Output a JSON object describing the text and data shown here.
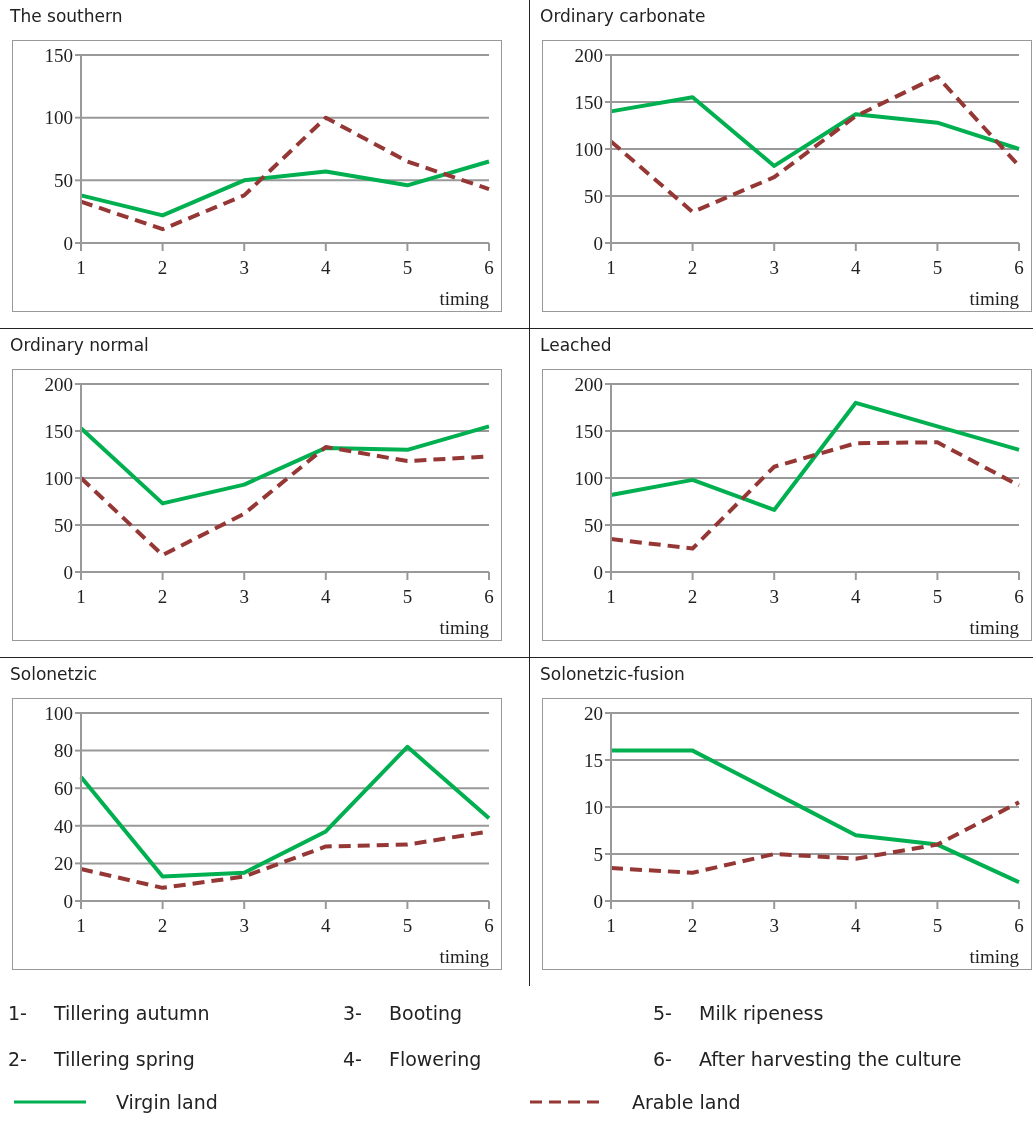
{
  "chart_data": [
    {
      "type": "line",
      "title": "The southern",
      "xlabel": "timing",
      "categories": [
        "1",
        "2",
        "3",
        "4",
        "5",
        "6"
      ],
      "ylim": [
        0,
        150
      ],
      "yticks": [
        0,
        50,
        100,
        150
      ],
      "grid": "y",
      "series": [
        {
          "color": "#00b050",
          "line_style": "solid",
          "values": [
            38,
            22,
            50,
            57,
            46,
            65
          ]
        },
        {
          "color": "#953735",
          "line_style": "dashed",
          "values": [
            33,
            11,
            38,
            100,
            65,
            43
          ]
        }
      ]
    },
    {
      "type": "line",
      "title": "Ordinary carbonate",
      "xlabel": "timing",
      "categories": [
        "1",
        "2",
        "3",
        "4",
        "5",
        "6"
      ],
      "ylim": [
        0,
        200
      ],
      "yticks": [
        0,
        50,
        100,
        150,
        200
      ],
      "grid": "y",
      "series": [
        {
          "color": "#00b050",
          "line_style": "solid",
          "values": [
            140,
            155,
            82,
            137,
            128,
            100
          ]
        },
        {
          "color": "#953735",
          "line_style": "dashed",
          "values": [
            108,
            33,
            70,
            135,
            177,
            82
          ]
        }
      ]
    },
    {
      "type": "line",
      "title": "Ordinary normal",
      "xlabel": "timing",
      "categories": [
        "1",
        "2",
        "3",
        "4",
        "5",
        "6"
      ],
      "ylim": [
        0,
        200
      ],
      "yticks": [
        0,
        50,
        100,
        150,
        200
      ],
      "grid": "y",
      "series": [
        {
          "color": "#00b050",
          "line_style": "solid",
          "values": [
            153,
            73,
            93,
            132,
            130,
            155
          ]
        },
        {
          "color": "#953735",
          "line_style": "dashed",
          "values": [
            100,
            18,
            62,
            133,
            118,
            123
          ]
        }
      ]
    },
    {
      "type": "line",
      "title": "Leached",
      "xlabel": "timing",
      "categories": [
        "1",
        "2",
        "3",
        "4",
        "5",
        "6"
      ],
      "ylim": [
        0,
        200
      ],
      "yticks": [
        0,
        50,
        100,
        150,
        200
      ],
      "grid": "y",
      "series": [
        {
          "color": "#00b050",
          "line_style": "solid",
          "values": [
            82,
            98,
            66,
            180,
            155,
            130
          ]
        },
        {
          "color": "#953735",
          "line_style": "dashed",
          "values": [
            35,
            25,
            112,
            137,
            138,
            92
          ]
        }
      ]
    },
    {
      "type": "line",
      "title": "Solonetzic",
      "xlabel": "timing",
      "categories": [
        "1",
        "2",
        "3",
        "4",
        "5",
        "6"
      ],
      "ylim": [
        0,
        100
      ],
      "yticks": [
        0,
        20,
        40,
        60,
        80,
        100
      ],
      "grid": "y",
      "series": [
        {
          "color": "#00b050",
          "line_style": "solid",
          "values": [
            66,
            13,
            15,
            37,
            82,
            44
          ]
        },
        {
          "color": "#953735",
          "line_style": "dashed",
          "values": [
            17,
            7,
            13,
            29,
            30,
            37
          ]
        }
      ]
    },
    {
      "type": "line",
      "title": "Solonetzic-fusion",
      "xlabel": "timing",
      "categories": [
        "1",
        "2",
        "3",
        "4",
        "5",
        "6"
      ],
      "ylim": [
        0,
        20
      ],
      "yticks": [
        0,
        5,
        10,
        15,
        20
      ],
      "grid": "y",
      "legend": "bottom",
      "annotations": [
        "1- Tillering autumn",
        "2- Tillering spring",
        "3- Booting",
        "4- Flowering",
        "5- Milk ripeness",
        "6- After harvesting the culture"
      ],
      "series": [
        {
          "name": "Virgin land",
          "color": "#00b050",
          "line_style": "solid",
          "values": [
            16,
            16,
            11.5,
            7,
            6,
            2
          ]
        },
        {
          "name": "Arable land",
          "color": "#953735",
          "line_style": "dashed",
          "values": [
            3.5,
            3,
            5,
            4.5,
            6,
            10.5
          ]
        }
      ]
    }
  ]
}
